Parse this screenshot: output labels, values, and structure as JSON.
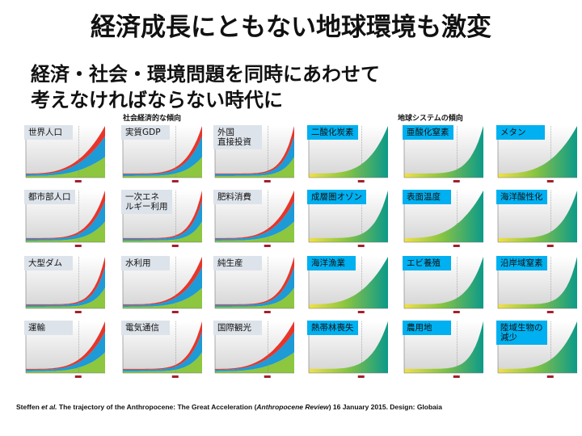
{
  "title": "経済成長にともない地球環境も激変",
  "subtitle_lines": [
    "経済・社会・環境問題を同時にあわせて",
    "考えなければならない時代に"
  ],
  "sections": {
    "socio": "社会経済的な傾向",
    "earth": "地球システムの傾向"
  },
  "charts": [
    {
      "label": "世界人口",
      "kind": "socio"
    },
    {
      "label": "実質GDP",
      "kind": "socio"
    },
    {
      "label": "外国\n直接投資",
      "kind": "socio"
    },
    {
      "label": "二酸化炭素",
      "kind": "earth"
    },
    {
      "label": "亜酸化窒素",
      "kind": "earth"
    },
    {
      "label": "メタン",
      "kind": "earth"
    },
    {
      "label": "都市部人口",
      "kind": "socio"
    },
    {
      "label": "一次エネ\nルギー利用",
      "kind": "socio"
    },
    {
      "label": "肥料消費",
      "kind": "socio"
    },
    {
      "label": "成層圏オゾン",
      "kind": "earth"
    },
    {
      "label": "表面温度",
      "kind": "earth"
    },
    {
      "label": "海洋酸性化",
      "kind": "earth"
    },
    {
      "label": "大型ダム",
      "kind": "socio"
    },
    {
      "label": "水利用",
      "kind": "socio"
    },
    {
      "label": "純生産",
      "kind": "socio"
    },
    {
      "label": "海洋漁業",
      "kind": "earth"
    },
    {
      "label": "エビ養殖",
      "kind": "earth"
    },
    {
      "label": "沿岸域窒素",
      "kind": "earth"
    },
    {
      "label": "運輸",
      "kind": "socio"
    },
    {
      "label": "電気通信",
      "kind": "socio"
    },
    {
      "label": "国際観光",
      "kind": "socio"
    },
    {
      "label": "熱帯林喪失",
      "kind": "earth"
    },
    {
      "label": "農用地",
      "kind": "earth"
    },
    {
      "label": "陸域生物の\n減少",
      "kind": "earth"
    }
  ],
  "citation": {
    "author": "Steffen ",
    "etal": "et al.",
    "text": " The trajectory of the Anthropocene: The Great Acceleration (",
    "journal": "Anthropocene Review",
    "rest": ") 16 January 2015. Design: Globaia"
  },
  "colors": {
    "earth_label": "#00b0f0",
    "socio_label": "#dde3ea",
    "green": "#8dc63f",
    "blue": "#1e9ad6",
    "red": "#e8352a",
    "teal": "#0c9a8a"
  }
}
